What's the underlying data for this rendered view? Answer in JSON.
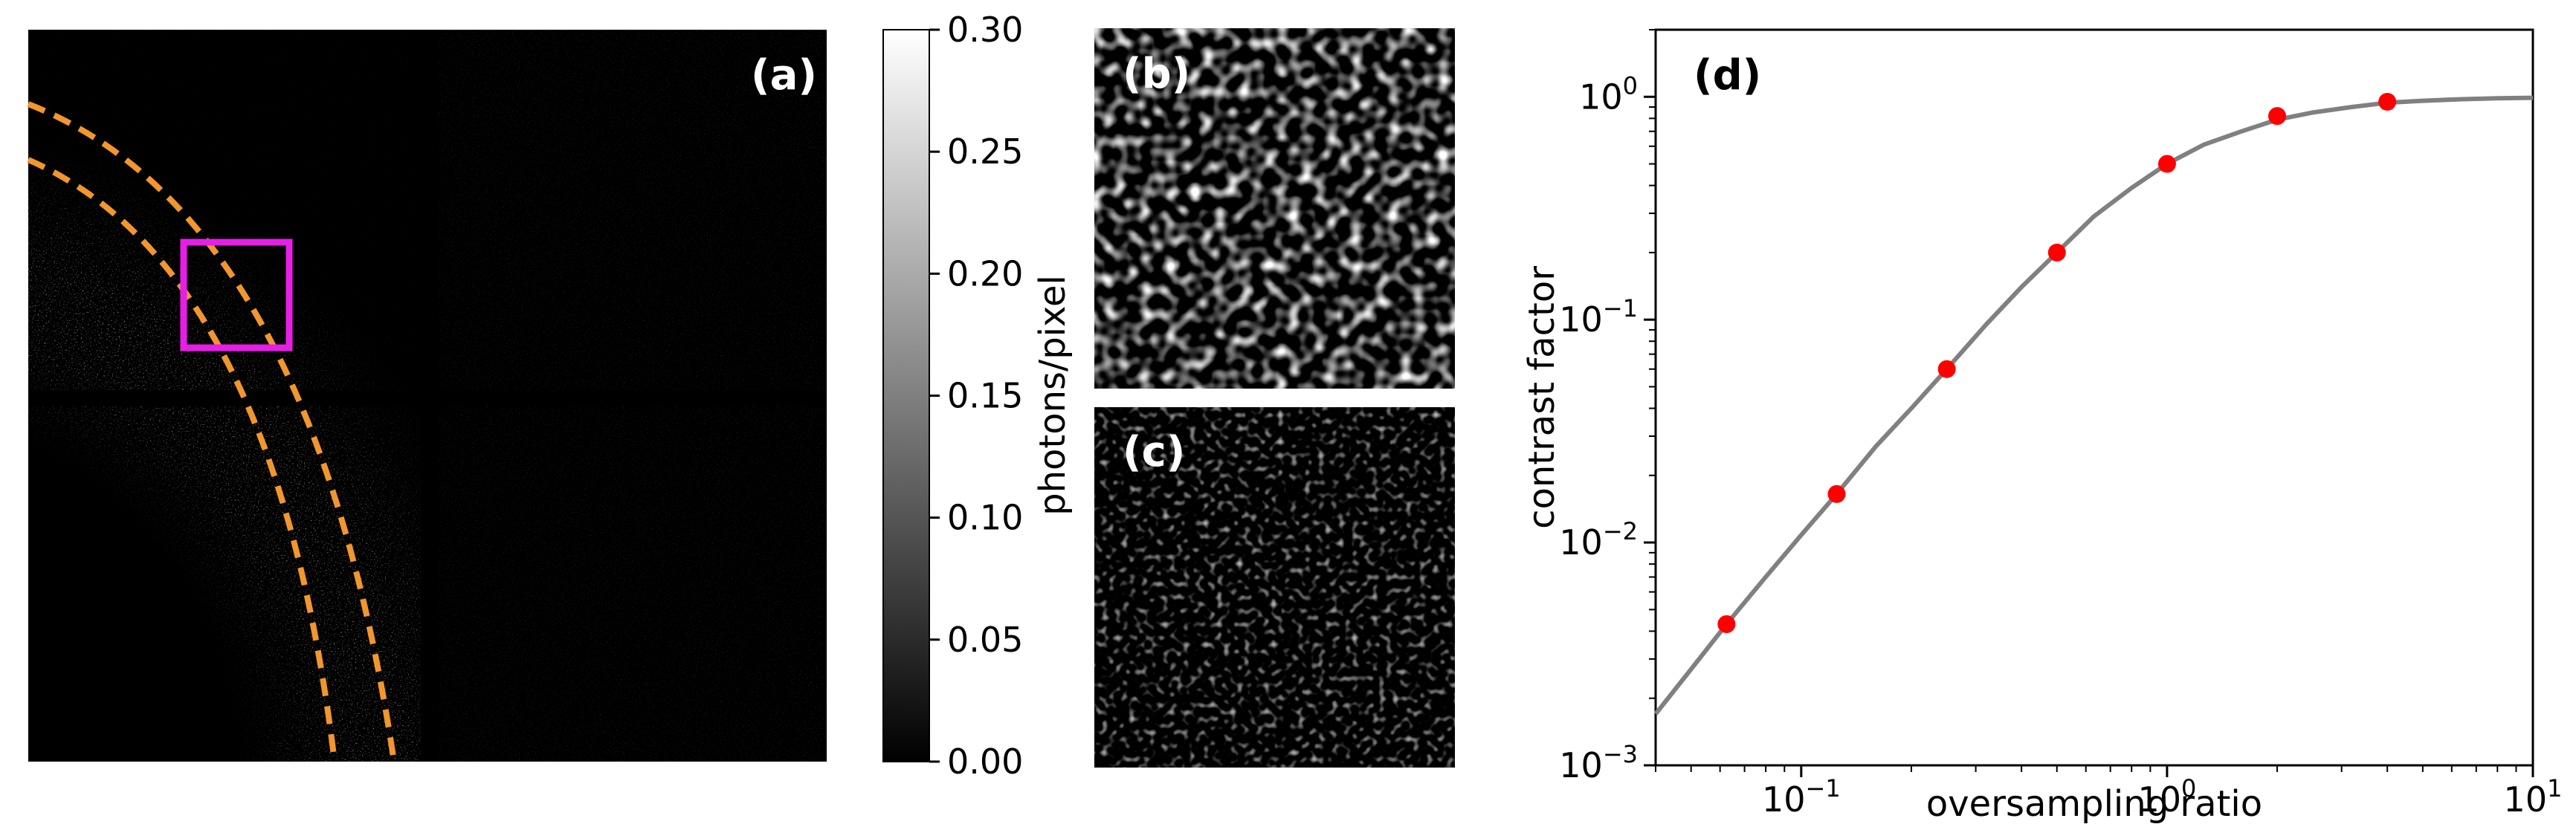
{
  "panels": {
    "a": {
      "label": "(a)"
    },
    "b": {
      "label": "(b)"
    },
    "c": {
      "label": "(c)"
    },
    "d": {
      "label": "(d)"
    }
  },
  "colorbar": {
    "title": "photons/pixel",
    "ticks": [
      "0.30",
      "0.25",
      "0.20",
      "0.15",
      "0.10",
      "0.05",
      "0.00"
    ],
    "range": [
      0.0,
      0.3
    ]
  },
  "colors": {
    "ring": "#f2962e",
    "roi": "#e61ee6",
    "curve": "#808080",
    "points": "#ff0000"
  },
  "chart_data": {
    "type": "scatter",
    "xlabel": "oversampling ratio",
    "ylabel": "contrast factor",
    "x_scale": "log",
    "y_scale": "log",
    "xlim": [
      0.04,
      10
    ],
    "ylim": [
      0.001,
      2
    ],
    "x_ticks": [
      {
        "value": 0.1,
        "base": "10",
        "exp": "−1"
      },
      {
        "value": 1,
        "base": "10",
        "exp": "0"
      },
      {
        "value": 10,
        "base": "10",
        "exp": "1"
      }
    ],
    "y_ticks": [
      {
        "value": 0.001,
        "base": "10",
        "exp": "−3"
      },
      {
        "value": 0.01,
        "base": "10",
        "exp": "−2"
      },
      {
        "value": 0.1,
        "base": "10",
        "exp": "−1"
      },
      {
        "value": 1,
        "base": "10",
        "exp": "0"
      }
    ],
    "series": [
      {
        "x": [
          0.0625,
          0.125,
          0.25,
          0.5,
          1,
          2,
          4
        ],
        "y": [
          0.0043,
          0.0165,
          0.06,
          0.2,
          0.5,
          0.82,
          0.95
        ]
      }
    ],
    "curve": {
      "x": [
        0.04,
        0.05,
        0.0625,
        0.08,
        0.1,
        0.125,
        0.16,
        0.2,
        0.25,
        0.32,
        0.4,
        0.5,
        0.63,
        0.8,
        1,
        1.26,
        1.6,
        2,
        2.5,
        3.2,
        4,
        5,
        6.3,
        8,
        10
      ],
      "y": [
        0.0017,
        0.0027,
        0.0043,
        0.007,
        0.0108,
        0.0165,
        0.027,
        0.04,
        0.06,
        0.095,
        0.14,
        0.2,
        0.29,
        0.39,
        0.5,
        0.61,
        0.7,
        0.79,
        0.85,
        0.9,
        0.94,
        0.96,
        0.975,
        0.985,
        0.99
      ]
    },
    "grid": false
  }
}
